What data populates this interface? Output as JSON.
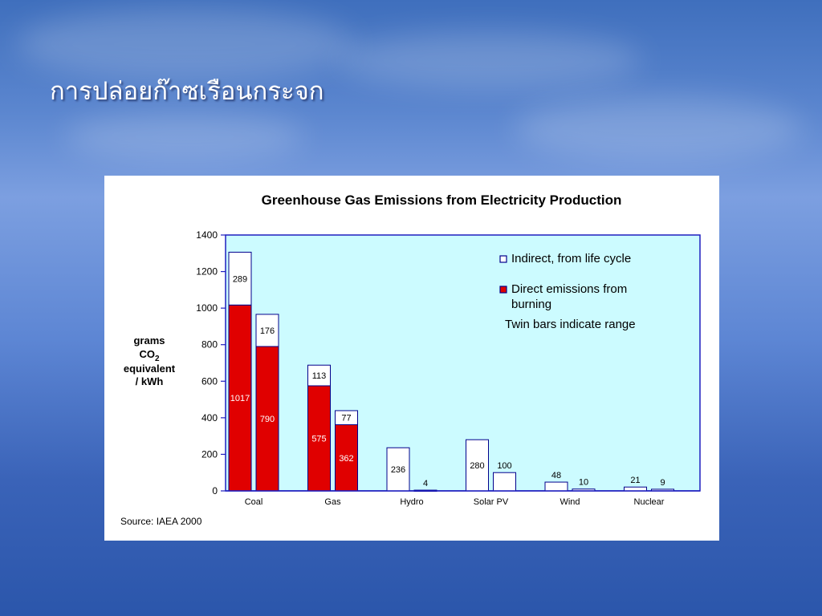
{
  "slide": {
    "title": "การปล่อยก๊าซเรือนกระจก"
  },
  "chart_data": {
    "type": "bar",
    "title": "Greenhouse Gas Emissions from Electricity Production",
    "ylabel_lines": [
      "grams",
      "CO",
      "equivalent",
      "/ kWh"
    ],
    "ylabel_subscript": "2",
    "ylim": [
      0,
      1400
    ],
    "yticks": [
      0,
      200,
      400,
      600,
      800,
      1000,
      1200,
      1400
    ],
    "categories": [
      "Coal",
      "Gas",
      "Hydro",
      "Solar PV",
      "Wind",
      "Nuclear"
    ],
    "bars": [
      {
        "category": "Coal",
        "direct": 1017,
        "indirect": 289,
        "direct_label": "1017",
        "indirect_label": "289"
      },
      {
        "category": "Coal",
        "direct": 790,
        "indirect": 176,
        "direct_label": "790",
        "indirect_label": "176"
      },
      {
        "category": "Gas",
        "direct": 575,
        "indirect": 113,
        "direct_label": "575",
        "indirect_label": "113"
      },
      {
        "category": "Gas",
        "direct": 362,
        "indirect": 77,
        "direct_label": "362",
        "indirect_label": "77"
      },
      {
        "category": "Hydro",
        "direct": 0,
        "indirect": 236,
        "direct_label": "",
        "indirect_label": "236"
      },
      {
        "category": "Hydro",
        "direct": 0,
        "indirect": 4,
        "direct_label": "",
        "indirect_label": "4"
      },
      {
        "category": "Solar PV",
        "direct": 0,
        "indirect": 280,
        "direct_label": "",
        "indirect_label": "280"
      },
      {
        "category": "Solar PV",
        "direct": 0,
        "indirect": 100,
        "direct_label": "",
        "indirect_label": "100"
      },
      {
        "category": "Wind",
        "direct": 0,
        "indirect": 48,
        "direct_label": "",
        "indirect_label": "48"
      },
      {
        "category": "Wind",
        "direct": 0,
        "indirect": 10,
        "direct_label": "",
        "indirect_label": "10"
      },
      {
        "category": "Nuclear",
        "direct": 0,
        "indirect": 21,
        "direct_label": "",
        "indirect_label": "21"
      },
      {
        "category": "Nuclear",
        "direct": 0,
        "indirect": 9,
        "direct_label": "",
        "indirect_label": "9"
      }
    ],
    "legend": {
      "indirect": "Indirect, from life cycle",
      "direct_line1": "Direct emissions from",
      "direct_line2": "burning",
      "note": "Twin bars indicate range"
    },
    "source": "Source: IAEA 2000",
    "colors": {
      "plot_bg": "#ccfbff",
      "direct": "#e00000",
      "indirect": "#ffffff",
      "axis": "#1f1fbf",
      "bar_edge": "#00008b"
    }
  }
}
